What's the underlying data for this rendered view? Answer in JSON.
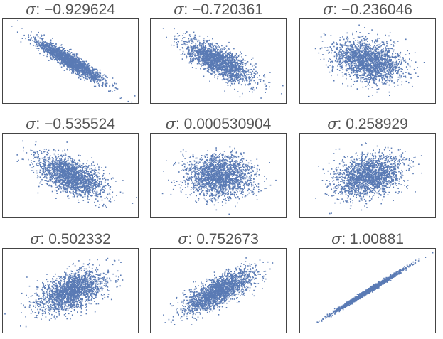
{
  "chart_data": [
    {
      "type": "scatter",
      "title": "σ : −0.929624",
      "title_symbol": "σ",
      "title_value": ": −0.929624",
      "sigma": -0.929624,
      "point_color": "#5a7bb5",
      "point_count": 2000,
      "xlim": [
        -4,
        4
      ],
      "ylim": [
        -4,
        4
      ]
    },
    {
      "type": "scatter",
      "title": "σ : −0.720361",
      "title_symbol": "σ",
      "title_value": ": −0.720361",
      "sigma": -0.720361,
      "point_color": "#5a7bb5",
      "point_count": 2000,
      "xlim": [
        -4,
        4
      ],
      "ylim": [
        -4,
        4
      ]
    },
    {
      "type": "scatter",
      "title": "σ : −0.236046",
      "title_symbol": "σ",
      "title_value": ": −0.236046",
      "sigma": -0.236046,
      "point_color": "#5a7bb5",
      "point_count": 2000,
      "xlim": [
        -4,
        4
      ],
      "ylim": [
        -4,
        4
      ]
    },
    {
      "type": "scatter",
      "title": "σ : −0.535524",
      "title_symbol": "σ",
      "title_value": ": −0.535524",
      "sigma": -0.535524,
      "point_color": "#5a7bb5",
      "point_count": 2000,
      "xlim": [
        -4,
        4
      ],
      "ylim": [
        -4,
        4
      ]
    },
    {
      "type": "scatter",
      "title": "σ : 0.000530904",
      "title_symbol": "σ",
      "title_value": ": 0.000530904",
      "sigma": 0.000530904,
      "point_color": "#5a7bb5",
      "point_count": 2000,
      "xlim": [
        -4,
        4
      ],
      "ylim": [
        -4,
        4
      ]
    },
    {
      "type": "scatter",
      "title": "σ : 0.258929",
      "title_symbol": "σ",
      "title_value": ": 0.258929",
      "sigma": 0.258929,
      "point_color": "#5a7bb5",
      "point_count": 2000,
      "xlim": [
        -4,
        4
      ],
      "ylim": [
        -4,
        4
      ]
    },
    {
      "type": "scatter",
      "title": "σ : 0.502332",
      "title_symbol": "σ",
      "title_value": ": 0.502332",
      "sigma": 0.502332,
      "point_color": "#5a7bb5",
      "point_count": 2000,
      "xlim": [
        -4,
        4
      ],
      "ylim": [
        -4,
        4
      ]
    },
    {
      "type": "scatter",
      "title": "σ : 0.752673",
      "title_symbol": "σ",
      "title_value": ": 0.752673",
      "sigma": 0.752673,
      "point_color": "#5a7bb5",
      "point_count": 2000,
      "xlim": [
        -4,
        4
      ],
      "ylim": [
        -4,
        4
      ]
    },
    {
      "type": "scatter",
      "title": "σ : 1.00881",
      "title_symbol": "σ",
      "title_value": ": 1.00881",
      "sigma": 1.00881,
      "point_color": "#5a7bb5",
      "point_count": 2000,
      "xlim": [
        -4,
        4
      ],
      "ylim": [
        -4,
        4
      ]
    }
  ],
  "frame_color": "#444444"
}
